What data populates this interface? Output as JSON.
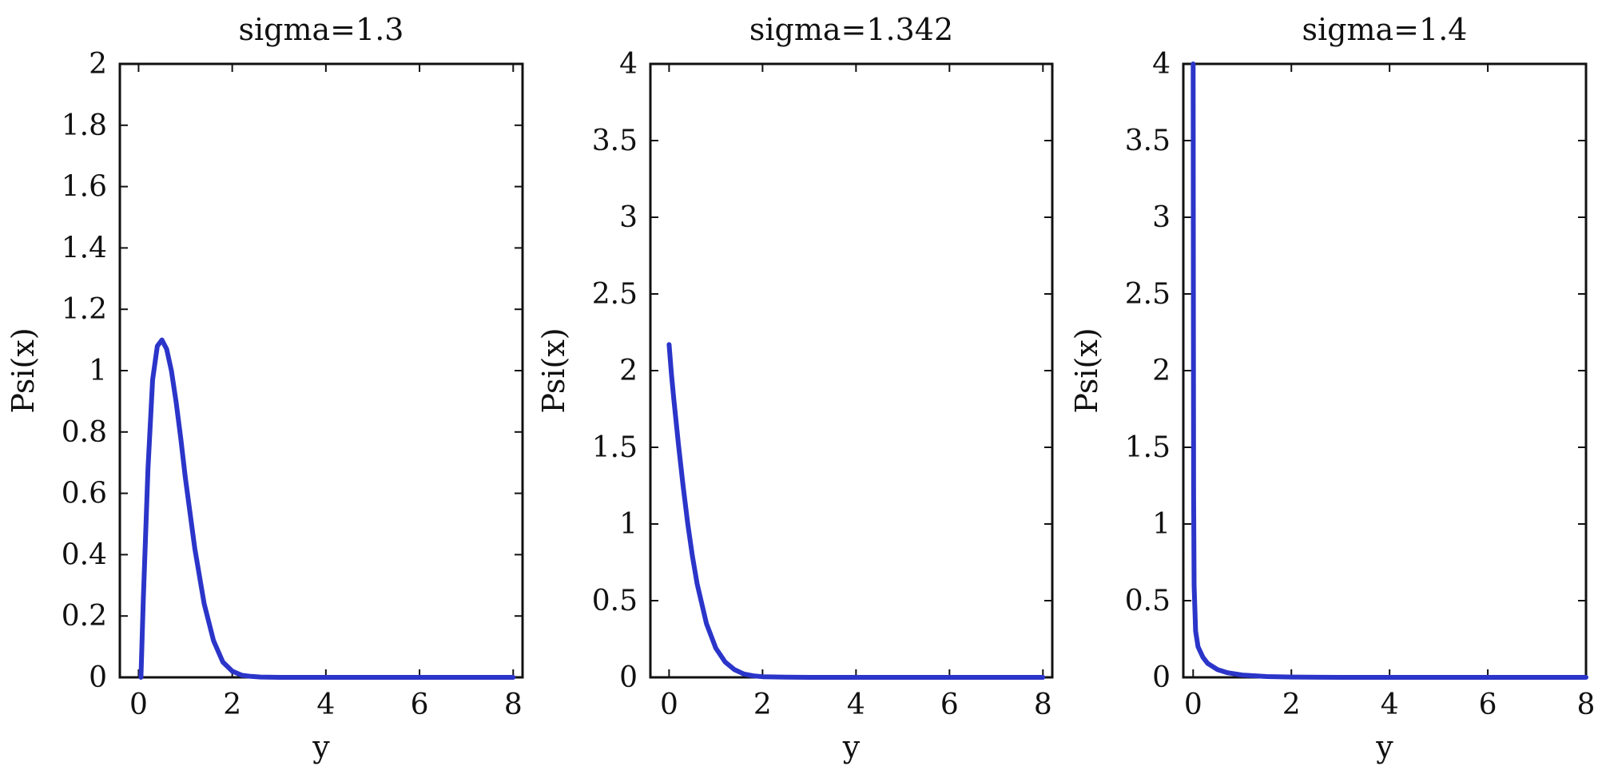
{
  "chart_data": [
    {
      "type": "line",
      "title": "sigma=1.3",
      "xlabel": "y",
      "ylabel": "Psi(x)",
      "xlim": [
        -0.4,
        8.2
      ],
      "ylim": [
        0,
        2
      ],
      "xticks": [
        "0",
        "2",
        "4",
        "6",
        "8"
      ],
      "yticks": [
        "0",
        "0.2",
        "0.4",
        "0.6",
        "0.8",
        "1",
        "1.2",
        "1.4",
        "1.6",
        "1.8",
        "2"
      ],
      "series": [
        {
          "color": "#2b35c9",
          "x": [
            0.05,
            0.1,
            0.2,
            0.3,
            0.4,
            0.5,
            0.6,
            0.7,
            0.8,
            0.9,
            1.0,
            1.2,
            1.4,
            1.6,
            1.8,
            2.0,
            2.2,
            2.4,
            2.6,
            3.0,
            4.0,
            6.0,
            8.0
          ],
          "y": [
            0.0,
            0.25,
            0.68,
            0.97,
            1.08,
            1.1,
            1.07,
            1.0,
            0.9,
            0.78,
            0.65,
            0.42,
            0.24,
            0.12,
            0.05,
            0.02,
            0.007,
            0.003,
            0.001,
            0.0,
            0.0,
            0.0,
            0.0
          ]
        }
      ]
    },
    {
      "type": "line",
      "title": "sigma=1.342",
      "xlabel": "y",
      "ylabel": "Psi(x)",
      "xlim": [
        -0.4,
        8.2
      ],
      "ylim": [
        0,
        4
      ],
      "xticks": [
        "0",
        "2",
        "4",
        "6",
        "8"
      ],
      "yticks": [
        "0",
        "0.5",
        "1",
        "1.5",
        "2",
        "2.5",
        "3",
        "3.5",
        "4"
      ],
      "series": [
        {
          "color": "#2b35c9",
          "x": [
            0.0,
            0.05,
            0.1,
            0.2,
            0.3,
            0.4,
            0.5,
            0.6,
            0.8,
            1.0,
            1.2,
            1.4,
            1.6,
            1.8,
            2.0,
            2.5,
            3.0,
            4.0,
            6.0,
            8.0
          ],
          "y": [
            2.17,
            1.98,
            1.82,
            1.52,
            1.25,
            1.0,
            0.79,
            0.61,
            0.35,
            0.19,
            0.1,
            0.05,
            0.022,
            0.01,
            0.004,
            0.001,
            0.0,
            0.0,
            0.0,
            0.0
          ]
        }
      ]
    },
    {
      "type": "line",
      "title": "sigma=1.4",
      "xlabel": "y",
      "ylabel": "Psi(x)",
      "xlim": [
        -0.2,
        8.0
      ],
      "ylim": [
        0,
        4
      ],
      "xticks": [
        "0",
        "2",
        "4",
        "6",
        "8"
      ],
      "yticks": [
        "0",
        "0.5",
        "1",
        "1.5",
        "2",
        "2.5",
        "3",
        "3.5",
        "4"
      ],
      "series": [
        {
          "color": "#2b35c9",
          "x": [
            0.0,
            0.005,
            0.01,
            0.02,
            0.05,
            0.1,
            0.2,
            0.3,
            0.5,
            0.7,
            1.0,
            1.5,
            2.0,
            3.0,
            4.0,
            6.0,
            8.0
          ],
          "y": [
            4.0,
            2.5,
            1.2,
            0.6,
            0.3,
            0.2,
            0.13,
            0.09,
            0.05,
            0.03,
            0.015,
            0.005,
            0.002,
            0.0,
            0.0,
            0.0,
            0.0
          ]
        }
      ]
    }
  ]
}
